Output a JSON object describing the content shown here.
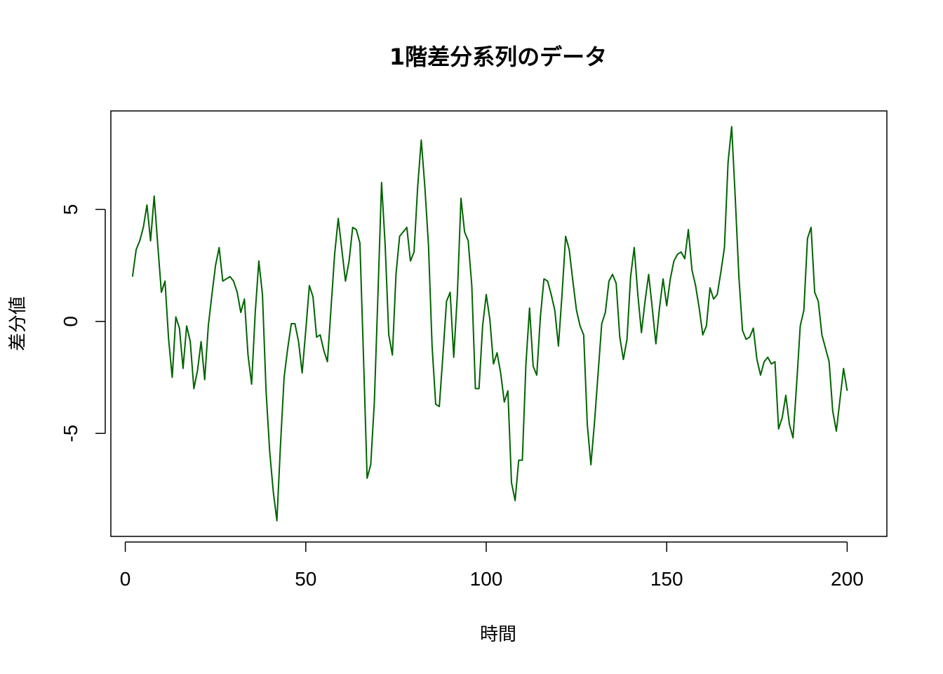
{
  "chart_data": {
    "type": "line",
    "title": "1階差分系列のデータ",
    "xlabel": "時間",
    "ylabel": "差分値",
    "xlim": [
      -4,
      211
    ],
    "ylim": [
      -9.6,
      9.4
    ],
    "xticks": [
      0,
      50,
      100,
      150,
      200
    ],
    "yticks": [
      -5,
      0,
      5
    ],
    "grid": false,
    "legend": "none",
    "line_color": "#006400",
    "x_start": 2,
    "values": [
      2.0,
      3.2,
      3.6,
      4.2,
      5.2,
      3.6,
      5.6,
      3.4,
      1.3,
      1.8,
      -0.8,
      -2.5,
      0.2,
      -0.3,
      -2.1,
      -0.2,
      -0.9,
      -3.0,
      -2.2,
      -0.9,
      -2.6,
      -0.2,
      1.2,
      2.5,
      3.3,
      1.8,
      1.9,
      2.0,
      1.8,
      1.3,
      0.4,
      1.0,
      -1.5,
      -2.8,
      0.4,
      2.7,
      1.2,
      -3.1,
      -5.8,
      -7.6,
      -8.9,
      -5.5,
      -2.5,
      -1.2,
      -0.1,
      -0.1,
      -0.9,
      -2.3,
      -0.4,
      1.6,
      1.1,
      -0.7,
      -0.6,
      -1.3,
      -1.8,
      0.6,
      3.0,
      4.6,
      3.2,
      1.8,
      2.7,
      4.2,
      4.1,
      3.5,
      -1.6,
      -7.0,
      -6.4,
      -3.6,
      1.2,
      6.2,
      3.4,
      -0.6,
      -1.5,
      2.1,
      3.8,
      4.0,
      4.2,
      2.7,
      3.1,
      6.0,
      8.1,
      6.0,
      3.4,
      -1.1,
      -3.7,
      -3.8,
      -1.5,
      0.9,
      1.3,
      -1.6,
      1.2,
      5.5,
      4.0,
      3.6,
      1.6,
      -3.0,
      -3.0,
      -0.2,
      1.2,
      0.1,
      -1.9,
      -1.4,
      -2.3,
      -3.6,
      -3.1,
      -7.2,
      -8.0,
      -6.2,
      -6.2,
      -1.9,
      0.6,
      -2.0,
      -2.4,
      0.2,
      1.9,
      1.8,
      1.2,
      0.5,
      -1.1,
      1.2,
      3.8,
      3.2,
      1.8,
      0.5,
      -0.2,
      -0.6,
      -4.6,
      -6.4,
      -4.5,
      -2.3,
      -0.1,
      0.4,
      1.8,
      2.1,
      1.7,
      -0.7,
      -1.7,
      -0.8,
      2.0,
      3.3,
      1.2,
      -0.5,
      0.9,
      2.1,
      0.6,
      -1.0,
      0.6,
      1.9,
      0.7,
      1.9,
      2.7,
      3.0,
      3.1,
      2.8,
      4.1,
      2.3,
      1.6,
      0.6,
      -0.6,
      -0.2,
      1.5,
      1.0,
      1.2,
      2.2,
      3.3,
      7.1,
      8.7,
      5.5,
      2.0,
      -0.4,
      -0.8,
      -0.7,
      -0.3,
      -1.7,
      -2.4,
      -1.8,
      -1.6,
      -1.9,
      -1.8,
      -4.8,
      -4.3,
      -3.3,
      -4.6,
      -5.2,
      -2.8,
      -0.2,
      0.5,
      3.7,
      4.2,
      1.3,
      0.9,
      -0.6,
      -1.2,
      -1.8,
      -4.0,
      -4.9,
      -3.5,
      -2.1,
      -3.1
    ]
  }
}
